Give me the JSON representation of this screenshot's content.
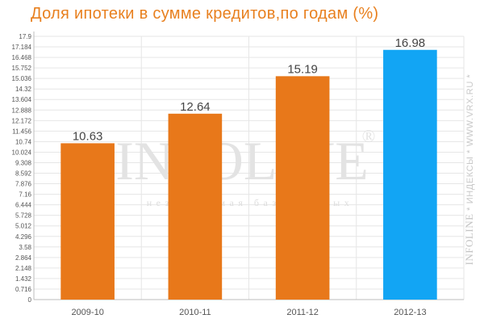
{
  "chart_data": {
    "type": "bar",
    "title": "Доля ипотеки в сумме кредитов,по годам (%)",
    "xlabel": "",
    "ylabel": "",
    "categories": [
      "2009-10",
      "2010-11",
      "2011-12",
      "2012-13"
    ],
    "values": [
      10.63,
      12.64,
      15.19,
      16.98
    ],
    "value_labels": [
      "10.63",
      "12.64",
      "15.19",
      "16.98"
    ],
    "ylim": [
      0,
      17.9
    ],
    "yticks": [
      "0",
      "0.716",
      "1.432",
      "2.148",
      "2.864",
      "3.58",
      "4.296",
      "5.012",
      "5.728",
      "6.444",
      "7.16",
      "7.876",
      "8.592",
      "9.308",
      "10.024",
      "10.74",
      "11.456",
      "12.172",
      "12.888",
      "13.604",
      "14.32",
      "15.036",
      "15.752",
      "16.468",
      "17.184",
      "17.9"
    ],
    "grid": true,
    "legend": "none",
    "bar_colors": [
      "#e8781a",
      "#e8781a",
      "#e8781a",
      "#12a5f4"
    ]
  },
  "watermark": {
    "center_logo": "INFOLINE",
    "center_logo_mark": "®",
    "center_tagline": "независимая база данных",
    "side_brand": "INFOLINE",
    "side_text": " * ИНДЕКСЫ * WWW.VRX.RU *"
  },
  "colors": {
    "title": "#e8801f",
    "grid": "#e6e6e6",
    "axis_text": "#555555"
  }
}
